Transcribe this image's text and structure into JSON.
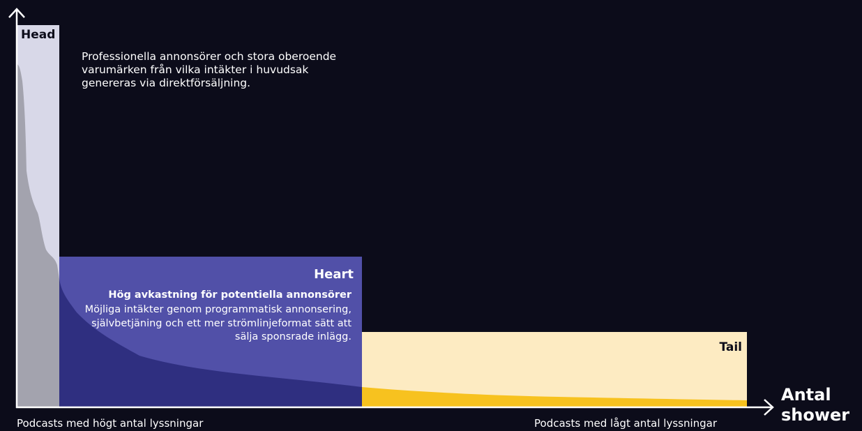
{
  "colors": {
    "background": "#0c0c1a",
    "head_zone": "#d8d8e8",
    "head_curve": "#a3a3ae",
    "heart_zone": "#5150a8",
    "heart_curve": "#2f2f80",
    "tail_zone": "#fdebc2",
    "tail_curve": "#f7c21f",
    "axis": "#ffffff"
  },
  "head": {
    "label": "Head",
    "description": "Professionella annonsörer och stora oberoende varumärken från vilka intäkter i huvudsak genereras via direktförsäljning."
  },
  "heart": {
    "label": "Heart",
    "subtitle": "Hög avkastning för potentiella annonsörer",
    "description": "Möjliga intäkter genom programmatisk annonsering, självbetjäning och ett mer strömlinjeformat sätt att sälja sponsrade inlägg."
  },
  "tail": {
    "label": "Tail"
  },
  "axes": {
    "x_label_line1": "Antal",
    "x_label_line2": "shower",
    "left_caption": "Podcasts med högt antal lyssningar",
    "right_caption": "Podcasts med lågt antal lyssningar"
  }
}
